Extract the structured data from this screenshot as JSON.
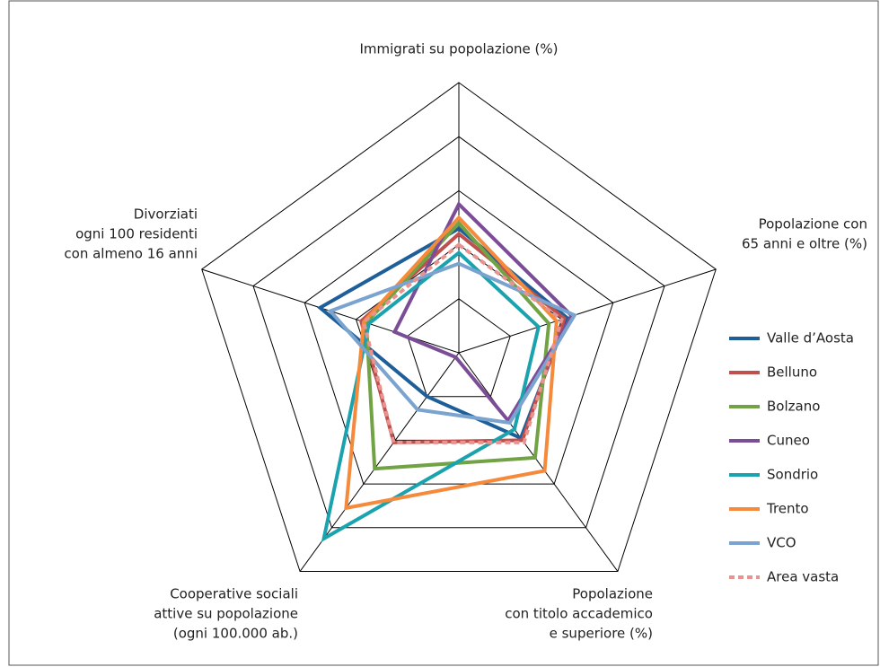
{
  "chart_data": {
    "type": "radar",
    "axes": [
      [
        "Immigrati su popolazione (%)"
      ],
      [
        "Popolazione con",
        "65 anni e oltre (%)"
      ],
      [
        "Popolazione",
        "con titolo accademico",
        "e superiore (%)"
      ],
      [
        "Cooperative sociali",
        "attive su popolazione",
        "(ogni 100.000 ab.)"
      ],
      [
        "Divorziati",
        "ogni 100 residenti",
        "con almeno 16 anni"
      ]
    ],
    "rlim": [
      0,
      5
    ],
    "rticks": [
      1,
      2,
      3,
      4,
      5
    ],
    "legend": "right",
    "series": [
      {
        "name": "Valle d’Aosta",
        "color": "#1f5f99",
        "values": [
          2.3,
          2.1,
          1.95,
          1.0,
          2.7
        ]
      },
      {
        "name": "Belluno",
        "color": "#c0504d",
        "values": [
          2.2,
          2.05,
          2.0,
          2.05,
          1.9
        ]
      },
      {
        "name": "Bolzano",
        "color": "#71a244",
        "values": [
          2.4,
          1.75,
          2.4,
          2.65,
          1.8
        ]
      },
      {
        "name": "Cuneo",
        "color": "#7b4d96",
        "values": [
          2.75,
          2.2,
          1.55,
          0.1,
          1.25
        ]
      },
      {
        "name": "Sondrio",
        "color": "#1aa3ae",
        "values": [
          1.85,
          1.55,
          1.75,
          4.25,
          1.75
        ]
      },
      {
        "name": "Trento",
        "color": "#f58a3c",
        "values": [
          2.5,
          1.9,
          2.7,
          3.55,
          1.85
        ]
      },
      {
        "name": "VCO",
        "color": "#7aa3cf",
        "values": [
          1.65,
          2.25,
          1.6,
          1.3,
          2.5
        ]
      },
      {
        "name": "Area vasta",
        "color": "#e8938f",
        "dashed": true,
        "values": [
          2.0,
          2.0,
          2.05,
          2.05,
          1.85
        ]
      }
    ]
  }
}
